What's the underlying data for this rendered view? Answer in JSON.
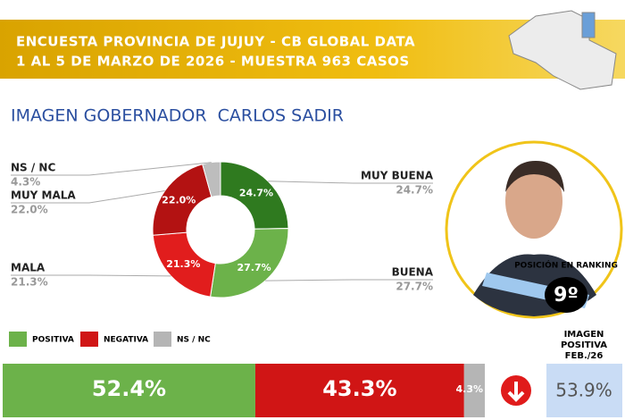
{
  "header": {
    "lines": [
      "ENCUESTA PROVINCIA DE JUJUY - CB GLOBAL DATA",
      "1 AL 5 DE MARZO DE 2026 - MUESTRA 963 CASOS"
    ]
  },
  "chart_data": [
    {
      "type": "pie",
      "donut": true,
      "title": "IMAGEN GOBERNADOR  CARLOS SADIR",
      "categories": [
        "MUY BUENA",
        "BUENA",
        "MALA",
        "MUY MALA",
        "NS / NC"
      ],
      "values": [
        24.7,
        27.7,
        21.3,
        22.0,
        4.3
      ],
      "value_labels": [
        "24.7%",
        "27.7%",
        "21.3%",
        "22.0%",
        "4.3%"
      ],
      "colors": [
        "#2f7a1f",
        "#6cb24a",
        "#e11d1d",
        "#b31212",
        "#bdbdbd"
      ]
    },
    {
      "type": "bar",
      "orientation": "horizontal",
      "stacked": true,
      "xlim": [
        0,
        100
      ],
      "series": [
        {
          "name": "POSITIVA",
          "color": "#6cb24a",
          "values": [
            52.4
          ],
          "value_labels": [
            "52.4%"
          ]
        },
        {
          "name": "NEGATIVA",
          "color": "#d01515",
          "values": [
            43.3
          ],
          "value_labels": [
            "43.3%"
          ]
        },
        {
          "name": "NS / NC",
          "color": "#b5b5b5",
          "values": [
            4.3
          ],
          "value_labels": [
            "4.3%"
          ]
        }
      ]
    }
  ],
  "ranking": {
    "label": "POSICIÓN EN RANKING",
    "position": "9º"
  },
  "previous": {
    "label_lines": [
      "IMAGEN",
      "POSITIVA",
      "FEB./26"
    ],
    "value": "53.9%"
  }
}
